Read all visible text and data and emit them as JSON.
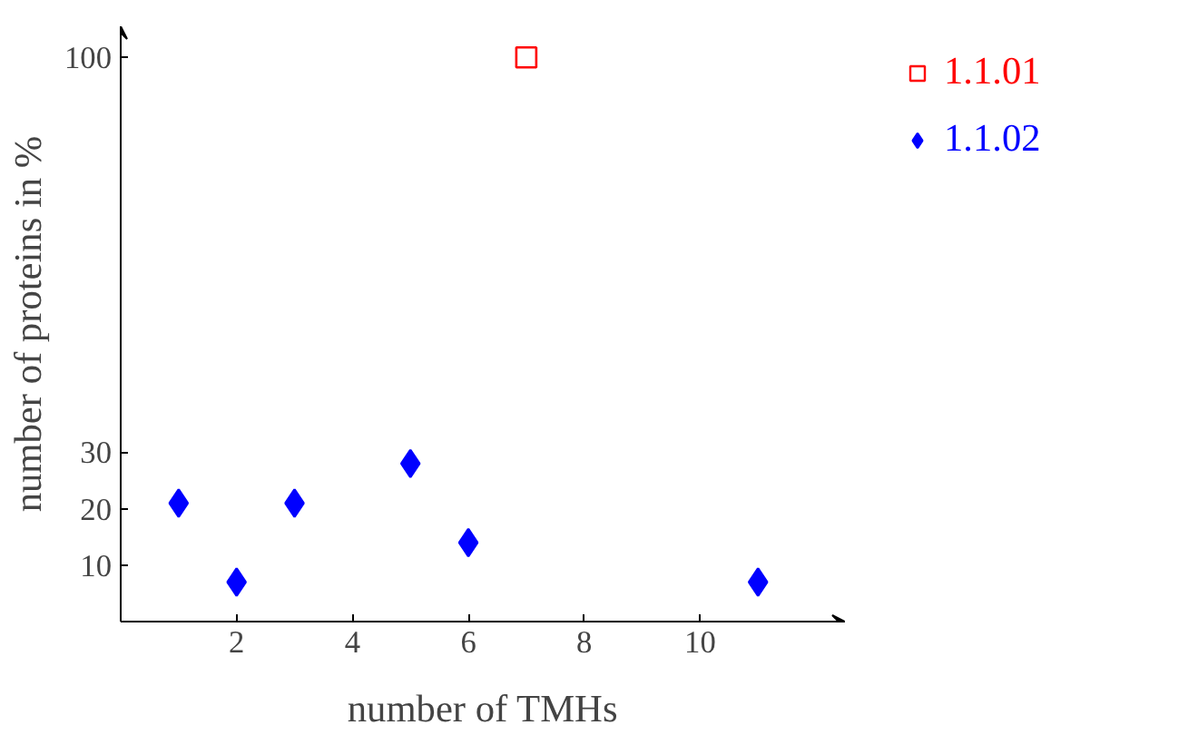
{
  "chart_data": {
    "type": "scatter",
    "xlabel": "number of TMHs",
    "ylabel": "number of proteins in %",
    "xlim": [
      0,
      12.5
    ],
    "ylim": [
      0,
      105.5
    ],
    "xticks": [
      2,
      4,
      6,
      8,
      10
    ],
    "yticks": [
      10,
      20,
      30,
      100
    ],
    "grid": false,
    "legend": "right",
    "series": [
      {
        "name": "1.1.01",
        "color": "#ff0000",
        "marker": "square",
        "x": [
          7
        ],
        "values": [
          100
        ]
      },
      {
        "name": "1.1.02",
        "color": "#0000ff",
        "marker": "diamond",
        "x": [
          1,
          2,
          3,
          5,
          6,
          11
        ],
        "values": [
          21,
          7,
          21,
          28,
          14,
          7
        ]
      }
    ]
  }
}
